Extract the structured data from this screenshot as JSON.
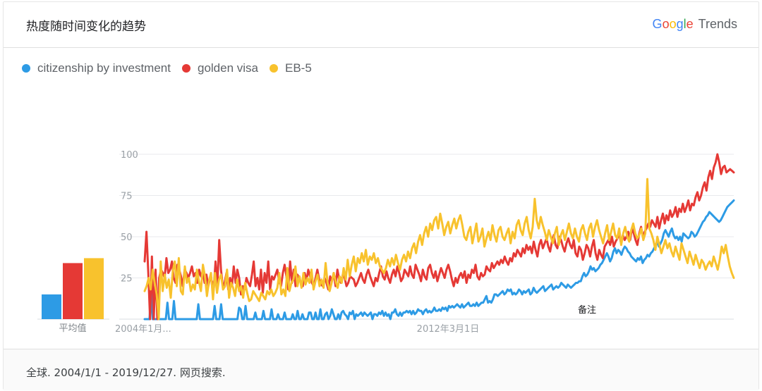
{
  "header": {
    "title": "热度随时间变化的趋势",
    "brand": {
      "g1": "G",
      "o1": "o",
      "o2": "o",
      "g2": "g",
      "l": "l",
      "e": "e",
      "trends": "Trends"
    }
  },
  "footer": {
    "text": "全球. 2004/1/1 - 2019/12/27. 网页搜索."
  },
  "colors": {
    "blue": "#2d9be5",
    "red": "#e53935",
    "yellow": "#f8c22d"
  },
  "chart_data": {
    "type": "line",
    "ylim": [
      0,
      100
    ],
    "yticks": [
      25,
      50,
      75,
      100
    ],
    "xtick_labels": [
      "2004年1月...",
      "2012年3月1日"
    ],
    "annotation": "备注",
    "average_label": "平均值",
    "averages": [
      {
        "name": "citizenship by investment",
        "value": 15
      },
      {
        "name": "golden visa",
        "value": 34
      },
      {
        "name": "EB-5",
        "value": 37
      }
    ],
    "series": [
      {
        "name": "citizenship by investment",
        "color": "#2d9be5",
        "values": [
          0,
          0,
          0,
          0,
          18,
          0,
          0,
          0,
          0,
          0,
          0,
          0,
          0,
          0,
          10,
          0,
          0,
          0,
          11,
          0,
          0,
          0,
          0,
          0,
          0,
          0,
          0,
          0,
          0,
          0,
          0,
          0,
          0,
          9,
          0,
          0,
          0,
          0,
          0,
          0,
          0,
          0,
          0,
          8,
          0,
          0,
          0,
          9,
          0,
          0,
          0,
          0,
          0,
          0,
          0,
          0,
          0,
          0,
          7,
          6,
          0,
          0,
          8,
          0,
          0,
          0,
          0,
          0,
          4,
          0,
          0,
          0,
          0,
          5,
          0,
          0,
          0,
          0,
          6,
          0,
          0,
          0,
          3,
          0,
          0,
          0,
          4,
          0,
          0,
          0,
          0,
          3,
          0,
          0,
          5,
          0,
          0,
          3,
          0,
          0,
          0,
          4,
          4,
          0,
          0,
          4,
          0,
          0,
          6,
          0,
          0,
          3,
          4,
          0,
          2,
          6,
          3,
          0,
          0,
          3,
          0,
          4,
          5,
          3,
          2,
          0,
          4,
          3,
          5,
          0,
          3,
          2,
          3,
          4,
          2,
          4,
          3,
          2,
          3,
          4,
          0,
          3,
          3,
          2,
          4,
          3,
          5,
          2,
          4,
          2,
          3,
          0,
          4,
          4,
          6,
          3,
          2,
          4,
          2,
          4,
          4,
          5,
          4,
          5,
          3,
          5,
          3,
          4,
          6,
          5,
          5,
          3,
          5,
          6,
          4,
          5,
          4,
          5,
          7,
          5,
          5,
          6,
          5,
          7,
          6,
          7,
          5,
          8,
          7,
          8,
          7,
          8,
          9,
          8,
          7,
          9,
          7,
          8,
          9,
          10,
          8,
          8,
          9,
          8,
          10,
          8,
          9,
          10,
          10,
          12,
          14,
          10,
          11,
          10,
          12,
          15,
          15,
          14,
          15,
          16,
          17,
          15,
          16,
          18,
          17,
          18,
          15,
          16,
          15,
          16,
          18,
          17,
          15,
          17,
          16,
          17,
          18,
          15,
          16,
          19,
          17,
          16,
          17,
          18,
          19,
          20,
          17,
          18,
          19,
          20,
          21,
          18,
          19,
          20,
          19,
          20,
          22,
          21,
          20,
          19,
          21,
          20,
          19,
          20,
          21,
          22,
          22,
          23,
          23,
          26,
          28,
          26,
          27,
          29,
          32,
          30,
          31,
          29,
          30,
          31,
          33,
          34,
          36,
          38,
          40,
          38,
          35,
          37,
          41,
          43,
          40,
          42,
          41,
          39,
          42,
          44,
          43,
          41,
          40,
          38,
          37,
          36,
          35,
          37,
          36,
          38,
          34,
          36,
          37,
          39,
          38,
          40,
          41,
          43,
          45,
          47,
          44,
          46,
          48,
          52,
          54,
          52,
          50,
          53,
          55,
          51,
          49,
          50,
          48,
          50,
          47,
          52,
          51,
          50,
          49,
          50,
          53,
          52,
          50,
          51,
          53,
          55,
          57,
          59,
          60,
          62,
          63,
          65,
          64,
          63,
          62,
          61,
          60,
          59,
          60,
          62,
          64,
          66,
          68,
          69,
          70,
          71,
          72
        ]
      },
      {
        "name": "golden visa",
        "color": "#e53935",
        "values": [
          35,
          53,
          28,
          0,
          38,
          0,
          30,
          0,
          25,
          30,
          28,
          25,
          37,
          28,
          30,
          35,
          25,
          22,
          33,
          30,
          26,
          20,
          30,
          28,
          25,
          28,
          32,
          26,
          28,
          22,
          30,
          26,
          29,
          22,
          27,
          20,
          25,
          23,
          18,
          35,
          20,
          48,
          30,
          20,
          22,
          28,
          18,
          25,
          20,
          32,
          22,
          30,
          25,
          15,
          20,
          18,
          25,
          22,
          20,
          27,
          35,
          20,
          25,
          18,
          30,
          16,
          28,
          22,
          35,
          18,
          26,
          24,
          27,
          30,
          23,
          20,
          28,
          33,
          26,
          18,
          35,
          22,
          30,
          20,
          27,
          25,
          22,
          20,
          28,
          23,
          30,
          26,
          22,
          20,
          25,
          30,
          24,
          21,
          20,
          25,
          22,
          18,
          26,
          23,
          28,
          20,
          30,
          24,
          22,
          27,
          25,
          20,
          22,
          26,
          25,
          24,
          20,
          22,
          25,
          28,
          24,
          22,
          27,
          30,
          26,
          23,
          20,
          25,
          23,
          28,
          32,
          26,
          24,
          29,
          25,
          22,
          27,
          30,
          26,
          32,
          28,
          23,
          25,
          30,
          28,
          26,
          32,
          27,
          25,
          33,
          30,
          27,
          23,
          30,
          26,
          24,
          31,
          33,
          28,
          25,
          29,
          23,
          27,
          31,
          28,
          25,
          30,
          33,
          29,
          24,
          20,
          25,
          22,
          26,
          28,
          25,
          29,
          22,
          27,
          25,
          30,
          28,
          33,
          26,
          24,
          28,
          26,
          27,
          32,
          30,
          29,
          34,
          31,
          33,
          35,
          33,
          36,
          34,
          38,
          35,
          33,
          37,
          35,
          40,
          38,
          42,
          40,
          38,
          43,
          40,
          45,
          42,
          44,
          40,
          47,
          42,
          38,
          45,
          48,
          43,
          46,
          49,
          44,
          41,
          47,
          51,
          45,
          43,
          50,
          48,
          44,
          41,
          46,
          49,
          45,
          43,
          48,
          40,
          38,
          44,
          42,
          36,
          40,
          45,
          43,
          38,
          44,
          48,
          40,
          36,
          42,
          39,
          37,
          44,
          46,
          48,
          45,
          50,
          44,
          47,
          49,
          52,
          46,
          51,
          48,
          50,
          53,
          48,
          55,
          52,
          48,
          45,
          52,
          56,
          50,
          53,
          55,
          58,
          56,
          60,
          58,
          56,
          62,
          55,
          60,
          64,
          58,
          63,
          60,
          66,
          62,
          64,
          68,
          62,
          67,
          65,
          70,
          65,
          68,
          72,
          66,
          70,
          69,
          74,
          77,
          72,
          75,
          80,
          83,
          78,
          86,
          90,
          85,
          92,
          95,
          100,
          95,
          88,
          92,
          93,
          89,
          90,
          91,
          90,
          89
        ]
      },
      {
        "name": "EB-5",
        "color": "#f8c22d",
        "values": [
          17,
          20,
          25,
          18,
          30,
          22,
          15,
          0,
          35,
          17,
          27,
          19,
          24,
          13,
          29,
          35,
          20,
          37,
          17,
          15,
          32,
          22,
          25,
          17,
          21,
          18,
          30,
          23,
          17,
          33,
          26,
          14,
          23,
          28,
          12,
          28,
          16,
          24,
          27,
          18,
          20,
          30,
          13,
          22,
          19,
          14,
          24,
          17,
          20,
          13,
          22,
          16,
          11,
          12,
          17,
          15,
          13,
          11,
          16,
          14,
          12,
          17,
          15,
          18,
          14,
          16,
          19,
          28,
          15,
          18,
          14,
          31,
          17,
          22,
          24,
          32,
          20,
          26,
          19,
          28,
          21,
          25,
          22,
          30,
          18,
          23,
          27,
          20,
          24,
          19,
          34,
          22,
          17,
          22,
          28,
          23,
          19,
          26,
          22,
          31,
          24,
          36,
          26,
          33,
          38,
          29,
          37,
          34,
          40,
          35,
          42,
          33,
          38,
          36,
          40,
          34,
          37,
          32,
          30,
          28,
          31,
          36,
          32,
          37,
          33,
          39,
          34,
          30,
          36,
          39,
          35,
          41,
          37,
          43,
          46,
          40,
          47,
          51,
          45,
          52,
          56,
          50,
          58,
          54,
          60,
          62,
          55,
          64,
          58,
          51,
          56,
          59,
          52,
          57,
          61,
          55,
          60,
          63,
          57,
          50,
          48,
          53,
          56,
          46,
          52,
          58,
          47,
          50,
          55,
          44,
          49,
          53,
          48,
          57,
          51,
          47,
          54,
          56,
          50,
          48,
          52,
          55,
          46,
          53,
          49,
          57,
          60,
          54,
          51,
          58,
          62,
          54,
          49,
          56,
          73,
          60,
          55,
          62,
          57,
          53,
          48,
          54,
          50,
          46,
          52,
          56,
          45,
          51,
          54,
          48,
          53,
          58,
          52,
          49,
          55,
          50,
          47,
          54,
          57,
          52,
          48,
          55,
          58,
          50,
          56,
          60,
          54,
          50,
          46,
          52,
          57,
          48,
          53,
          58,
          51,
          49,
          55,
          45,
          52,
          56,
          50,
          47,
          54,
          58,
          52,
          49,
          51,
          55,
          48,
          52,
          85,
          55,
          52,
          48,
          42,
          50,
          45,
          40,
          44,
          48,
          43,
          46,
          41,
          38,
          44,
          40,
          36,
          46,
          42,
          38,
          34,
          41,
          37,
          33,
          39,
          35,
          31,
          36,
          34,
          30,
          33,
          35,
          32,
          38,
          34,
          30,
          36,
          44,
          40,
          45,
          38,
          32,
          28,
          25
        ]
      }
    ]
  }
}
